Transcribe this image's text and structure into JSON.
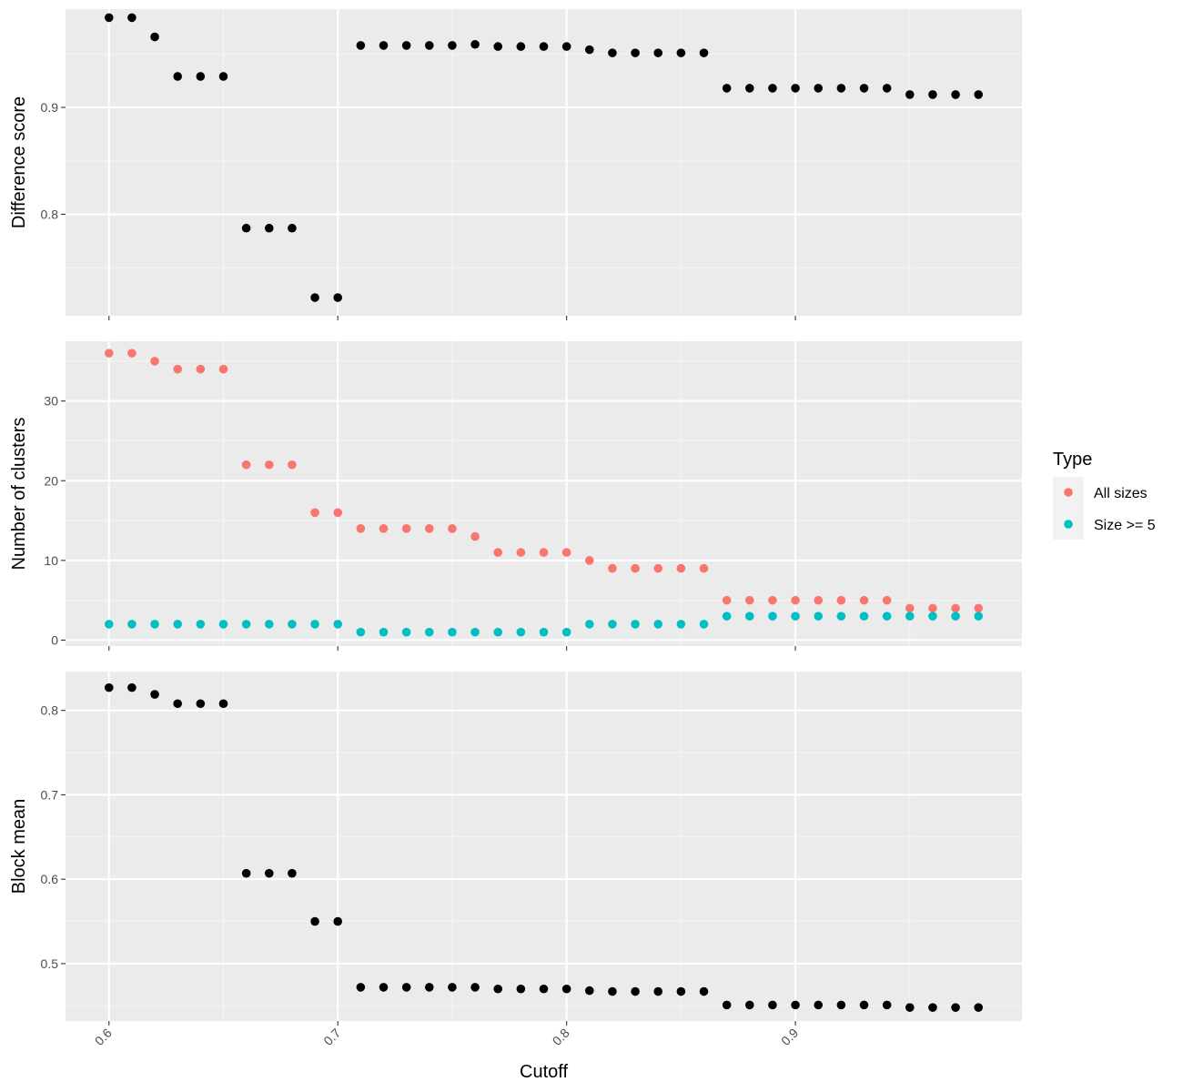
{
  "chart_data": [
    {
      "type": "scatter",
      "ylabel": "Difference score",
      "ylim": [
        0.705,
        0.992
      ],
      "yticks": [
        0.8,
        0.9
      ],
      "ytick_labels": [
        "0.8",
        "0.9"
      ],
      "grid": true,
      "series": [
        {
          "color": "#000000",
          "x": [
            0.6,
            0.61,
            0.62,
            0.63,
            0.64,
            0.65,
            0.66,
            0.67,
            0.68,
            0.69,
            0.7,
            0.71,
            0.72,
            0.73,
            0.74,
            0.75,
            0.76,
            0.77,
            0.78,
            0.79,
            0.8,
            0.81,
            0.82,
            0.83,
            0.84,
            0.85,
            0.86,
            0.87,
            0.88,
            0.89,
            0.9,
            0.91,
            0.92,
            0.93,
            0.94,
            0.95,
            0.96,
            0.97,
            0.98
          ],
          "y": [
            0.984,
            0.984,
            0.966,
            0.929,
            0.929,
            0.929,
            0.787,
            0.787,
            0.787,
            0.722,
            0.722,
            0.958,
            0.958,
            0.958,
            0.958,
            0.958,
            0.959,
            0.957,
            0.957,
            0.957,
            0.957,
            0.954,
            0.951,
            0.951,
            0.951,
            0.951,
            0.951,
            0.918,
            0.918,
            0.918,
            0.918,
            0.918,
            0.918,
            0.918,
            0.918,
            0.912,
            0.912,
            0.912,
            0.912
          ]
        }
      ]
    },
    {
      "type": "scatter",
      "ylabel": "Number of clusters",
      "ylim": [
        -0.75,
        37.5
      ],
      "yticks": [
        0,
        10,
        20,
        30
      ],
      "ytick_labels": [
        "0",
        "10",
        "20",
        "30"
      ],
      "grid": true,
      "legend": {
        "title": "Type",
        "position": "right"
      },
      "series": [
        {
          "name": "All sizes",
          "color": "#F8766D",
          "x": [
            0.6,
            0.61,
            0.62,
            0.63,
            0.64,
            0.65,
            0.66,
            0.67,
            0.68,
            0.69,
            0.7,
            0.71,
            0.72,
            0.73,
            0.74,
            0.75,
            0.76,
            0.77,
            0.78,
            0.79,
            0.8,
            0.81,
            0.82,
            0.83,
            0.84,
            0.85,
            0.86,
            0.87,
            0.88,
            0.89,
            0.9,
            0.91,
            0.92,
            0.93,
            0.94,
            0.95,
            0.96,
            0.97,
            0.98
          ],
          "y": [
            36,
            36,
            35,
            34,
            34,
            34,
            22,
            22,
            22,
            16,
            16,
            14,
            14,
            14,
            14,
            14,
            13,
            11,
            11,
            11,
            11,
            10,
            9,
            9,
            9,
            9,
            9,
            5,
            5,
            5,
            5,
            5,
            5,
            5,
            5,
            4,
            4,
            4,
            4
          ]
        },
        {
          "name": "Size >= 5",
          "color": "#00BFC4",
          "x": [
            0.6,
            0.61,
            0.62,
            0.63,
            0.64,
            0.65,
            0.66,
            0.67,
            0.68,
            0.69,
            0.7,
            0.71,
            0.72,
            0.73,
            0.74,
            0.75,
            0.76,
            0.77,
            0.78,
            0.79,
            0.8,
            0.81,
            0.82,
            0.83,
            0.84,
            0.85,
            0.86,
            0.87,
            0.88,
            0.89,
            0.9,
            0.91,
            0.92,
            0.93,
            0.94,
            0.95,
            0.96,
            0.97,
            0.98
          ],
          "y": [
            2,
            2,
            2,
            2,
            2,
            2,
            2,
            2,
            2,
            2,
            2,
            1,
            1,
            1,
            1,
            1,
            1,
            1,
            1,
            1,
            1,
            2,
            2,
            2,
            2,
            2,
            2,
            3,
            3,
            3,
            3,
            3,
            3,
            3,
            3,
            3,
            3,
            3,
            3
          ]
        }
      ]
    },
    {
      "type": "scatter",
      "ylabel": "Block mean",
      "xlabel": "Cutoff",
      "xlim": [
        0.581,
        0.999
      ],
      "xticks": [
        0.6,
        0.7,
        0.8,
        0.9
      ],
      "xtick_labels": [
        "0.6",
        "0.7",
        "0.8",
        "0.9"
      ],
      "ylim": [
        0.432,
        0.846
      ],
      "yticks": [
        0.5,
        0.6,
        0.7,
        0.8
      ],
      "ytick_labels": [
        "0.5",
        "0.6",
        "0.7",
        "0.8"
      ],
      "grid": true,
      "series": [
        {
          "color": "#000000",
          "x": [
            0.6,
            0.61,
            0.62,
            0.63,
            0.64,
            0.65,
            0.66,
            0.67,
            0.68,
            0.69,
            0.7,
            0.71,
            0.72,
            0.73,
            0.74,
            0.75,
            0.76,
            0.77,
            0.78,
            0.79,
            0.8,
            0.81,
            0.82,
            0.83,
            0.84,
            0.85,
            0.86,
            0.87,
            0.88,
            0.89,
            0.9,
            0.91,
            0.92,
            0.93,
            0.94,
            0.95,
            0.96,
            0.97,
            0.98
          ],
          "y": [
            0.827,
            0.827,
            0.819,
            0.808,
            0.808,
            0.808,
            0.607,
            0.607,
            0.607,
            0.55,
            0.55,
            0.472,
            0.472,
            0.472,
            0.472,
            0.472,
            0.472,
            0.47,
            0.47,
            0.47,
            0.47,
            0.468,
            0.467,
            0.467,
            0.467,
            0.467,
            0.467,
            0.451,
            0.451,
            0.451,
            0.451,
            0.451,
            0.451,
            0.451,
            0.451,
            0.448,
            0.448,
            0.448,
            0.448
          ]
        }
      ]
    }
  ]
}
